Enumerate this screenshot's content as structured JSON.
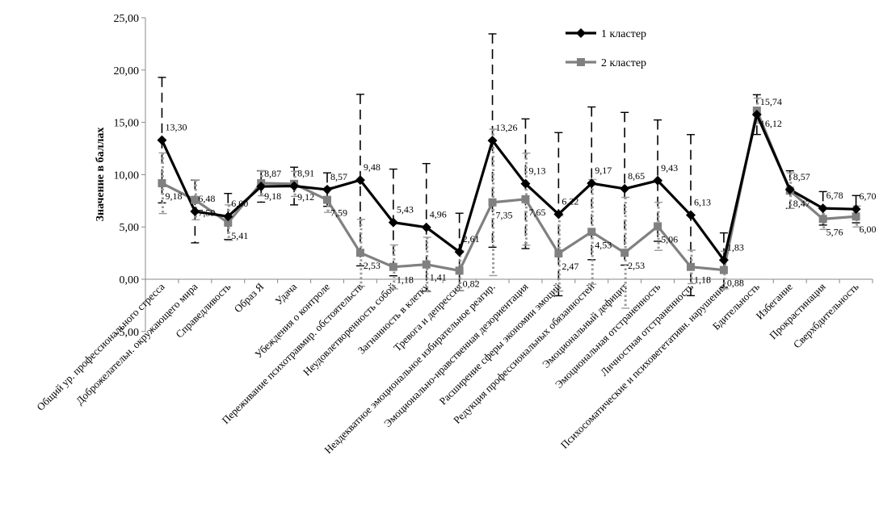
{
  "chart_data": {
    "type": "line",
    "ylabel": "Значение в баллах",
    "ylim": [
      -5,
      25
    ],
    "ytick_labels": [
      "-5,00",
      "0,00",
      "5,00",
      "10,00",
      "15,00",
      "20,00",
      "25,00"
    ],
    "grid": false,
    "legend_position": "top-right",
    "categories": [
      "Общий ур. профессионального стресса",
      "Доброжелательн. окружающего мира",
      "Справедливость",
      "Образ Я",
      "Удача",
      "Убеждения о контроле",
      "Переживание психотравмир. обстоятельств",
      "Неудовлетворенность собой",
      "Загнанность в клетку",
      "Тревога и депрессия",
      "Неадекватное эмоциональное избирательное реагир.",
      "Эмоционально-нравственная дезориентация",
      "Расширение сферы экономии эмоций",
      "Редукция профессиональных обязанностей",
      "Эмоциональный дефицит",
      "Эмоциональная отстраненность",
      "Личностная отстраненность",
      "Психосоматические и психовегетативн. нарушения",
      "Бдительность",
      "Избегание",
      "Прокрастинация",
      "Сверхбдительность"
    ],
    "series": [
      {
        "name": "1 кластер",
        "color": "#000000",
        "marker": "diamond",
        "values": [
          13.3,
          6.48,
          6.0,
          8.87,
          8.91,
          8.57,
          9.48,
          5.43,
          4.96,
          2.61,
          13.26,
          9.13,
          6.22,
          9.17,
          8.65,
          9.43,
          6.13,
          1.83,
          15.74,
          8.57,
          6.78,
          6.7
        ],
        "labels": [
          "13,30",
          "6,48",
          "6,00",
          "8,87",
          "8,91",
          "8,57",
          "9,48",
          "5,43",
          "4,96",
          "2,61",
          "13,26",
          "9,13",
          "6,22",
          "9,17",
          "8,65",
          "9,43",
          "6,13",
          "1,83",
          "15,74",
          "8,57",
          "6,78",
          "6,70"
        ],
        "error": [
          6.0,
          3.0,
          2.2,
          1.5,
          1.8,
          1.6,
          8.2,
          5.1,
          6.1,
          3.7,
          10.2,
          6.2,
          7.8,
          7.3,
          7.3,
          5.8,
          7.7,
          2.6,
          1.9,
          1.8,
          1.6,
          1.3
        ]
      },
      {
        "name": "2 кластер",
        "color": "#808080",
        "marker": "square",
        "values": [
          9.18,
          7.59,
          5.41,
          9.18,
          9.12,
          7.59,
          2.53,
          1.18,
          1.41,
          0.82,
          7.35,
          7.65,
          2.47,
          4.53,
          2.53,
          5.06,
          1.18,
          0.88,
          16.12,
          8.47,
          5.76,
          6.0
        ],
        "labels": [
          "9,18",
          "7,59",
          "5,41",
          "9,18",
          "9,12",
          "7,59",
          "2,53",
          "1,18",
          "1,41",
          "0,82",
          "7,35",
          "7,65",
          "2,47",
          "4,53",
          "2,53",
          "5,06",
          "1,18",
          "0,88",
          "16,12",
          "8,47",
          "5,76",
          "6,00"
        ],
        "error": [
          2.9,
          1.9,
          1.7,
          1.2,
          1.2,
          1.2,
          3.2,
          2.1,
          2.6,
          1.9,
          7.0,
          4.4,
          3.6,
          5.0,
          5.3,
          2.3,
          1.6,
          1.8,
          1.2,
          1.7,
          1.0,
          1.0
        ]
      }
    ]
  }
}
